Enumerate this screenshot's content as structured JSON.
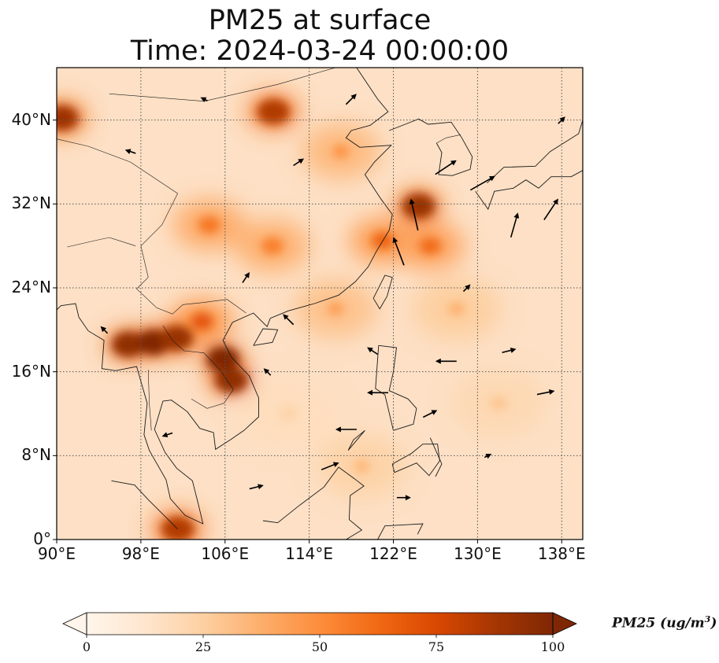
{
  "title": {
    "line1": "PM25 at surface",
    "line2": "Time: 2024-03-24 00:00:00"
  },
  "map": {
    "extent": {
      "lon": [
        90,
        140
      ],
      "lat": [
        0,
        45
      ]
    },
    "lon_ticks": [
      {
        "value": 90,
        "label": "90°E"
      },
      {
        "value": 98,
        "label": "98°E"
      },
      {
        "value": 106,
        "label": "106°E"
      },
      {
        "value": 114,
        "label": "114°E"
      },
      {
        "value": 122,
        "label": "122°E"
      },
      {
        "value": 130,
        "label": "130°E"
      },
      {
        "value": 138,
        "label": "138°E"
      }
    ],
    "lat_ticks": [
      {
        "value": 0,
        "label": "0°"
      },
      {
        "value": 8,
        "label": "8°N"
      },
      {
        "value": 16,
        "label": "16°N"
      },
      {
        "value": 24,
        "label": "24°N"
      },
      {
        "value": 32,
        "label": "32°N"
      },
      {
        "value": 40,
        "label": "40°N"
      }
    ],
    "gridlines": true,
    "features": [
      "PM25 concentration field",
      "wind vectors",
      "coastlines and borders"
    ]
  },
  "colorbar": {
    "colormap": [
      "#fff5eb",
      "#fee6ce",
      "#fdd0a2",
      "#fdae6b",
      "#fd8d3c",
      "#f16913",
      "#d94801",
      "#a63603",
      "#7f2704"
    ],
    "ticks": [
      {
        "value": 0,
        "label": "0"
      },
      {
        "value": 25,
        "label": "25"
      },
      {
        "value": 50,
        "label": "50"
      },
      {
        "value": 75,
        "label": "75"
      },
      {
        "value": 100,
        "label": "100"
      }
    ],
    "range": [
      0,
      100
    ],
    "label_name": "PM25 (ug/m",
    "label_exp": "3",
    "label_close": ")"
  },
  "pollution_hotspots": [
    {
      "lon": 96.8,
      "lat": 18.6,
      "value": 95
    },
    {
      "lon": 99.2,
      "lat": 18.8,
      "value": 100
    },
    {
      "lon": 101.4,
      "lat": 19.2,
      "value": 92
    },
    {
      "lon": 103.8,
      "lat": 20.8,
      "value": 70
    },
    {
      "lon": 105.8,
      "lat": 17.2,
      "value": 100
    },
    {
      "lon": 106.6,
      "lat": 15.2,
      "value": 95
    },
    {
      "lon": 124.4,
      "lat": 31.8,
      "value": 92
    },
    {
      "lon": 90.5,
      "lat": 40.2,
      "value": 90
    },
    {
      "lon": 110.6,
      "lat": 40.8,
      "value": 85
    },
    {
      "lon": 101.5,
      "lat": 1.0,
      "value": 85
    },
    {
      "lon": 121.0,
      "lat": 28.5,
      "value": 65
    },
    {
      "lon": 125.5,
      "lat": 28.0,
      "value": 62
    },
    {
      "lon": 104.5,
      "lat": 30.0,
      "value": 58
    },
    {
      "lon": 110.5,
      "lat": 28.0,
      "value": 55
    },
    {
      "lon": 117.0,
      "lat": 37.0,
      "value": 50
    },
    {
      "lon": 116.5,
      "lat": 22.0,
      "value": 45
    },
    {
      "lon": 128.0,
      "lat": 22.0,
      "value": 38
    },
    {
      "lon": 132.0,
      "lat": 13.0,
      "value": 30
    },
    {
      "lon": 112.0,
      "lat": 12.0,
      "value": 25
    },
    {
      "lon": 119.0,
      "lat": 7.0,
      "value": 35
    }
  ],
  "wind_vectors": [
    {
      "lon": 124.0,
      "lat": 31.0,
      "u": -2,
      "v": 9
    },
    {
      "lon": 122.5,
      "lat": 27.5,
      "u": -3,
      "v": 8
    },
    {
      "lon": 127.0,
      "lat": 35.5,
      "u": 6,
      "v": 4
    },
    {
      "lon": 130.5,
      "lat": 34.0,
      "u": 7,
      "v": 4
    },
    {
      "lon": 133.5,
      "lat": 30.0,
      "u": 2,
      "v": 7
    },
    {
      "lon": 137.0,
      "lat": 31.5,
      "u": 4,
      "v": 6
    },
    {
      "lon": 136.5,
      "lat": 14.0,
      "u": 5,
      "v": 1
    },
    {
      "lon": 127.0,
      "lat": 17.0,
      "u": -6,
      "v": 0
    },
    {
      "lon": 120.5,
      "lat": 14.0,
      "u": -6,
      "v": 0
    },
    {
      "lon": 117.5,
      "lat": 10.5,
      "u": -6,
      "v": 0
    },
    {
      "lon": 125.5,
      "lat": 12.0,
      "u": 4,
      "v": 2
    },
    {
      "lon": 133.0,
      "lat": 18.0,
      "u": 4,
      "v": 1
    },
    {
      "lon": 112.0,
      "lat": 21.0,
      "u": -3,
      "v": 3
    },
    {
      "lon": 108.0,
      "lat": 25.0,
      "u": 2,
      "v": 3
    },
    {
      "lon": 100.5,
      "lat": 10.0,
      "u": -3,
      "v": -1
    },
    {
      "lon": 116.0,
      "lat": 7.0,
      "u": 5,
      "v": 2
    },
    {
      "lon": 113.0,
      "lat": 36.0,
      "u": 3,
      "v": 2
    },
    {
      "lon": 97.0,
      "lat": 37.0,
      "u": -3,
      "v": 1
    },
    {
      "lon": 104.0,
      "lat": 42.0,
      "u": -2,
      "v": 1
    },
    {
      "lon": 118.0,
      "lat": 42.0,
      "u": 3,
      "v": 3
    },
    {
      "lon": 129.0,
      "lat": 24.0,
      "u": 2,
      "v": 2
    },
    {
      "lon": 110.0,
      "lat": 16.0,
      "u": -2,
      "v": 2
    },
    {
      "lon": 94.5,
      "lat": 20.0,
      "u": -2,
      "v": 2
    },
    {
      "lon": 109.0,
      "lat": 5.0,
      "u": 4,
      "v": 1
    },
    {
      "lon": 123.0,
      "lat": 4.0,
      "u": 4,
      "v": 0
    },
    {
      "lon": 131.0,
      "lat": 8.0,
      "u": 2,
      "v": 1
    },
    {
      "lon": 138.0,
      "lat": 40.0,
      "u": 2,
      "v": 2
    },
    {
      "lon": 120.0,
      "lat": 18.0,
      "u": -3,
      "v": 2
    }
  ]
}
